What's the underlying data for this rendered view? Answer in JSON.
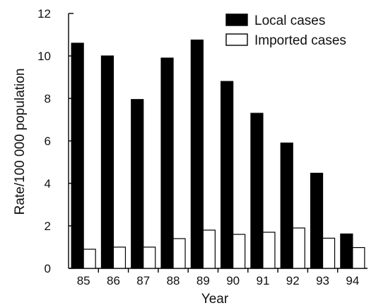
{
  "chart_data": {
    "type": "bar",
    "xlabel": "Year",
    "ylabel": "Rate/100 000 population",
    "categories": [
      "85",
      "86",
      "87",
      "88",
      "89",
      "90",
      "91",
      "92",
      "93",
      "94"
    ],
    "ylim": [
      0,
      12
    ],
    "yticks": [
      "0",
      "2",
      "4",
      "6",
      "8",
      "10",
      "12"
    ],
    "grid": false,
    "legend_position": "top-right",
    "series": [
      {
        "name": "Local cases",
        "color": "#000000",
        "values": [
          10.6,
          10.0,
          7.95,
          9.9,
          10.75,
          8.8,
          7.3,
          5.9,
          4.48,
          1.62
        ]
      },
      {
        "name": "Imported cases",
        "color": "#ffffff",
        "values": [
          0.9,
          1.0,
          1.0,
          1.4,
          1.8,
          1.6,
          1.7,
          1.9,
          1.42,
          0.98
        ]
      }
    ]
  }
}
